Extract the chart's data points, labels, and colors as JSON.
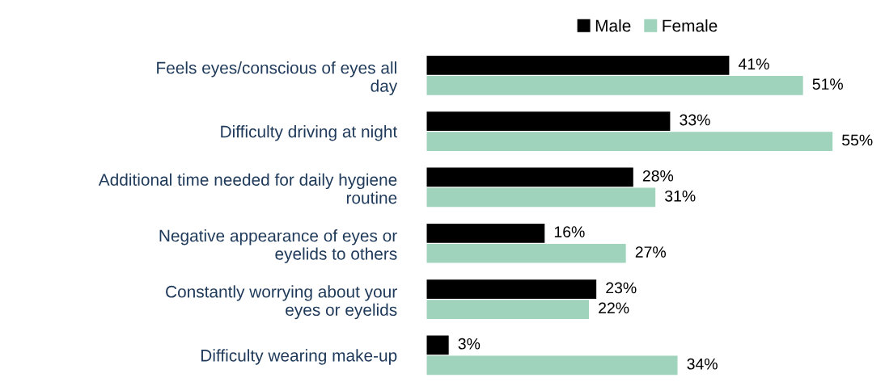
{
  "chart_data": {
    "type": "bar",
    "orientation": "horizontal",
    "categories": [
      "Feels eyes/conscious of eyes all\nday",
      "Difficulty driving at night",
      "Additional time needed for daily hygiene\nroutine",
      "Negative appearance of eyes or\neyelids to others",
      "Constantly worrying about your\neyes or eyelids",
      "Difficulty wearing make-up"
    ],
    "series": [
      {
        "name": "Male",
        "color": "#000000",
        "values": [
          41,
          33,
          28,
          16,
          23,
          3
        ],
        "value_labels": [
          "41%",
          "33%",
          "28%",
          "16%",
          "23%",
          "3%"
        ]
      },
      {
        "name": "Female",
        "color": "#9fd3bb",
        "values": [
          51,
          55,
          31,
          27,
          22,
          34
        ],
        "value_labels": [
          "51%",
          "55%",
          "31%",
          "27%",
          "22%",
          "34%"
        ]
      }
    ],
    "legend": "top",
    "grid": false,
    "tick_labels": "y"
  }
}
